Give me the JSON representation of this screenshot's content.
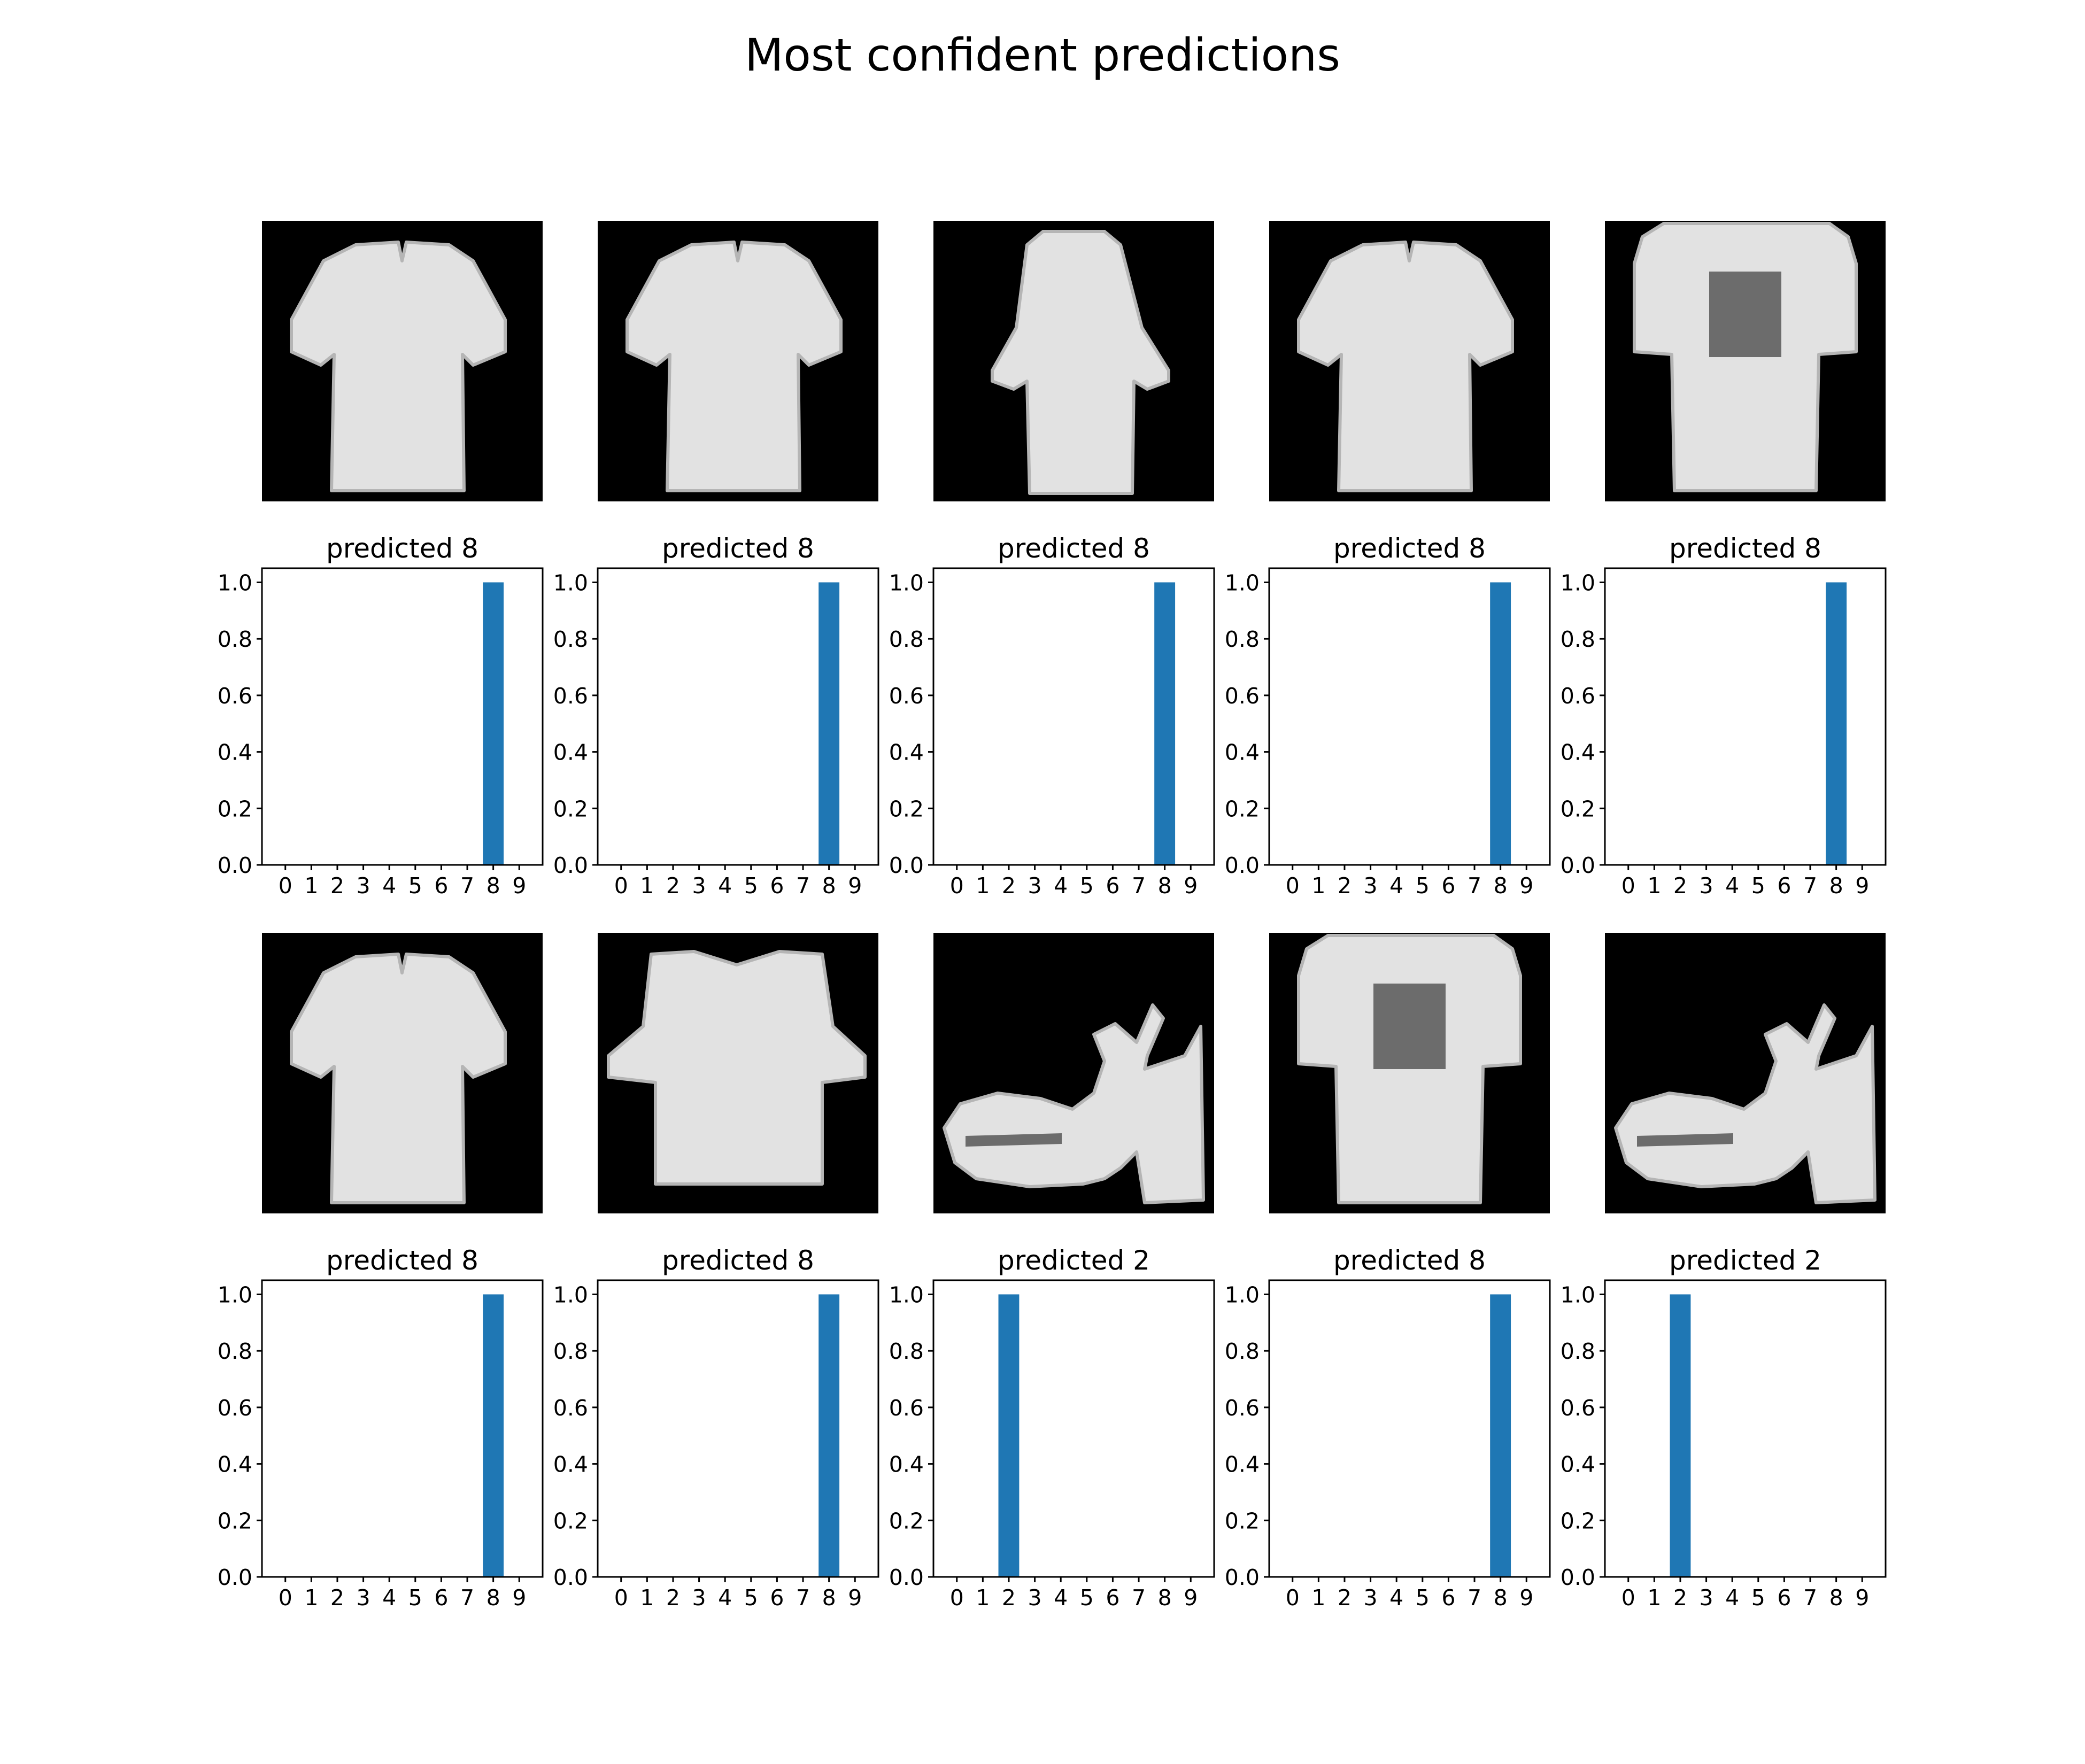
{
  "figure": {
    "title": "Most confident predictions"
  },
  "colors": {
    "bar": "#1f77b4",
    "image_background": "#000000",
    "garment": "#e2e2e2",
    "axes": "#000000"
  },
  "chart_data": [
    {
      "type": "bar",
      "title": "predicted 8",
      "categories": [
        "0",
        "1",
        "2",
        "3",
        "4",
        "5",
        "6",
        "7",
        "8",
        "9"
      ],
      "values": [
        0,
        0,
        0,
        0,
        0,
        0,
        0,
        0,
        1.0,
        0
      ],
      "ylim": [
        0,
        1.05
      ],
      "yticks": [
        "0.0",
        "0.2",
        "0.4",
        "0.6",
        "0.8",
        "1.0"
      ],
      "xlabel": "",
      "ylabel": "",
      "image_icon": "tshirt-icon"
    },
    {
      "type": "bar",
      "title": "predicted 8",
      "categories": [
        "0",
        "1",
        "2",
        "3",
        "4",
        "5",
        "6",
        "7",
        "8",
        "9"
      ],
      "values": [
        0,
        0,
        0,
        0,
        0,
        0,
        0,
        0,
        1.0,
        0
      ],
      "ylim": [
        0,
        1.05
      ],
      "yticks": [
        "0.0",
        "0.2",
        "0.4",
        "0.6",
        "0.8",
        "1.0"
      ],
      "xlabel": "",
      "ylabel": "",
      "image_icon": "tshirt-icon"
    },
    {
      "type": "bar",
      "title": "predicted 8",
      "categories": [
        "0",
        "1",
        "2",
        "3",
        "4",
        "5",
        "6",
        "7",
        "8",
        "9"
      ],
      "values": [
        0,
        0,
        0,
        0,
        0,
        0,
        0,
        0,
        1.0,
        0
      ],
      "ylim": [
        0,
        1.05
      ],
      "yticks": [
        "0.0",
        "0.2",
        "0.4",
        "0.6",
        "0.8",
        "1.0"
      ],
      "xlabel": "",
      "ylabel": "",
      "image_icon": "long-shirt-icon"
    },
    {
      "type": "bar",
      "title": "predicted 8",
      "categories": [
        "0",
        "1",
        "2",
        "3",
        "4",
        "5",
        "6",
        "7",
        "8",
        "9"
      ],
      "values": [
        0,
        0,
        0,
        0,
        0,
        0,
        0,
        0,
        1.0,
        0
      ],
      "ylim": [
        0,
        1.05
      ],
      "yticks": [
        "0.0",
        "0.2",
        "0.4",
        "0.6",
        "0.8",
        "1.0"
      ],
      "xlabel": "",
      "ylabel": "",
      "image_icon": "tshirt-icon"
    },
    {
      "type": "bar",
      "title": "predicted 8",
      "categories": [
        "0",
        "1",
        "2",
        "3",
        "4",
        "5",
        "6",
        "7",
        "8",
        "9"
      ],
      "values": [
        0,
        0,
        0,
        0,
        0,
        0,
        0,
        0,
        1.0,
        0
      ],
      "ylim": [
        0,
        1.05
      ],
      "yticks": [
        "0.0",
        "0.2",
        "0.4",
        "0.6",
        "0.8",
        "1.0"
      ],
      "xlabel": "",
      "ylabel": "",
      "image_icon": "printed-tshirt-icon"
    },
    {
      "type": "bar",
      "title": "predicted 8",
      "categories": [
        "0",
        "1",
        "2",
        "3",
        "4",
        "5",
        "6",
        "7",
        "8",
        "9"
      ],
      "values": [
        0,
        0,
        0,
        0,
        0,
        0,
        0,
        0,
        1.0,
        0
      ],
      "ylim": [
        0,
        1.05
      ],
      "yticks": [
        "0.0",
        "0.2",
        "0.4",
        "0.6",
        "0.8",
        "1.0"
      ],
      "xlabel": "",
      "ylabel": "",
      "image_icon": "tshirt-icon"
    },
    {
      "type": "bar",
      "title": "predicted 8",
      "categories": [
        "0",
        "1",
        "2",
        "3",
        "4",
        "5",
        "6",
        "7",
        "8",
        "9"
      ],
      "values": [
        0,
        0,
        0,
        0,
        0,
        0,
        0,
        0,
        1.0,
        0
      ],
      "ylim": [
        0,
        1.05
      ],
      "yticks": [
        "0.0",
        "0.2",
        "0.4",
        "0.6",
        "0.8",
        "1.0"
      ],
      "xlabel": "",
      "ylabel": "",
      "image_icon": "wide-top-icon"
    },
    {
      "type": "bar",
      "title": "predicted 2",
      "categories": [
        "0",
        "1",
        "2",
        "3",
        "4",
        "5",
        "6",
        "7",
        "8",
        "9"
      ],
      "values": [
        0,
        0,
        1.0,
        0,
        0,
        0,
        0,
        0,
        0,
        0
      ],
      "ylim": [
        0,
        1.05
      ],
      "yticks": [
        "0.0",
        "0.2",
        "0.4",
        "0.6",
        "0.8",
        "1.0"
      ],
      "xlabel": "",
      "ylabel": "",
      "image_icon": "sandal-icon"
    },
    {
      "type": "bar",
      "title": "predicted 8",
      "categories": [
        "0",
        "1",
        "2",
        "3",
        "4",
        "5",
        "6",
        "7",
        "8",
        "9"
      ],
      "values": [
        0,
        0,
        0,
        0,
        0,
        0,
        0,
        0,
        1.0,
        0
      ],
      "ylim": [
        0,
        1.05
      ],
      "yticks": [
        "0.0",
        "0.2",
        "0.4",
        "0.6",
        "0.8",
        "1.0"
      ],
      "xlabel": "",
      "ylabel": "",
      "image_icon": "printed-tshirt-icon"
    },
    {
      "type": "bar",
      "title": "predicted 2",
      "categories": [
        "0",
        "1",
        "2",
        "3",
        "4",
        "5",
        "6",
        "7",
        "8",
        "9"
      ],
      "values": [
        0,
        0,
        1.0,
        0,
        0,
        0,
        0,
        0,
        0,
        0
      ],
      "ylim": [
        0,
        1.05
      ],
      "yticks": [
        "0.0",
        "0.2",
        "0.4",
        "0.6",
        "0.8",
        "1.0"
      ],
      "xlabel": "",
      "ylabel": "",
      "image_icon": "sandal-icon"
    }
  ]
}
